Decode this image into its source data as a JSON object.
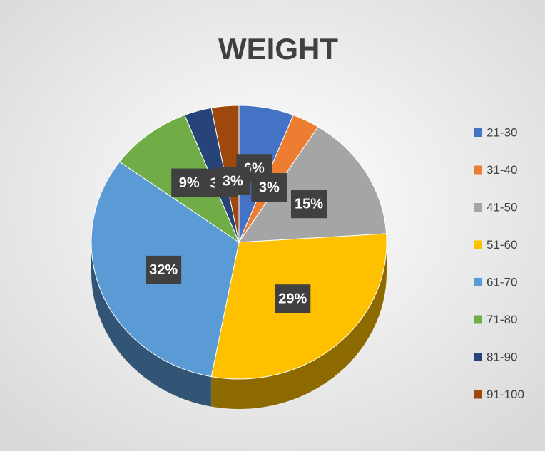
{
  "chart_data": {
    "type": "pie",
    "title": "WEIGHT",
    "categories": [
      "21-30",
      "31-40",
      "41-50",
      "51-60",
      "61-70",
      "71-80",
      "81-90",
      "91-100"
    ],
    "values": [
      6,
      3,
      15,
      29,
      32,
      9,
      3,
      3
    ],
    "value_labels": [
      "6%",
      "3%",
      "15%",
      "29%",
      "32%",
      "9%",
      "3%",
      "3%"
    ],
    "colors": [
      "#4472c4",
      "#ed7d31",
      "#a5a5a5",
      "#ffc000",
      "#5b9bd5",
      "#70ad47",
      "#264478",
      "#9e480e"
    ],
    "legend": "right"
  }
}
